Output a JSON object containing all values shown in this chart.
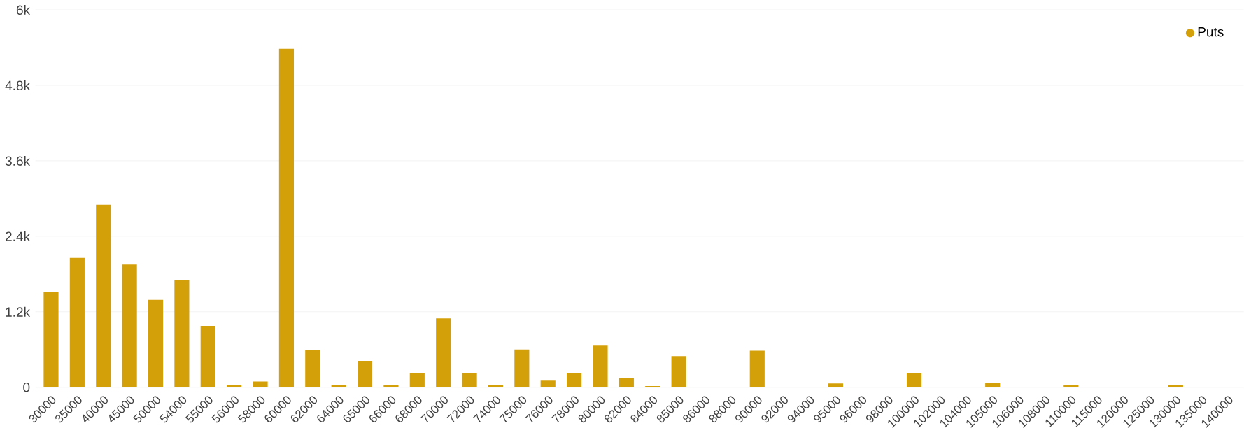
{
  "chart_data": {
    "type": "bar",
    "categories": [
      "30000",
      "35000",
      "40000",
      "45000",
      "50000",
      "54000",
      "55000",
      "56000",
      "58000",
      "60000",
      "62000",
      "64000",
      "65000",
      "66000",
      "68000",
      "70000",
      "72000",
      "74000",
      "75000",
      "76000",
      "78000",
      "80000",
      "82000",
      "84000",
      "85000",
      "86000",
      "88000",
      "90000",
      "92000",
      "94000",
      "95000",
      "96000",
      "98000",
      "100000",
      "102000",
      "104000",
      "105000",
      "106000",
      "108000",
      "110000",
      "115000",
      "120000",
      "125000",
      "130000",
      "135000",
      "140000"
    ],
    "series": [
      {
        "name": "Puts",
        "color": "#d4a00a",
        "values": [
          1515,
          2055,
          2900,
          1950,
          1390,
          1700,
          975,
          40,
          90,
          5380,
          585,
          40,
          420,
          40,
          225,
          1095,
          225,
          40,
          600,
          105,
          225,
          660,
          150,
          20,
          495,
          0,
          0,
          580,
          0,
          0,
          60,
          0,
          0,
          225,
          0,
          0,
          75,
          0,
          0,
          40,
          0,
          0,
          0,
          40,
          0,
          0
        ]
      }
    ],
    "ylim": [
      0,
      6000
    ],
    "yticks": [
      0,
      {
        "value": 1200,
        "label": "1.2k"
      },
      {
        "value": 2400,
        "label": "2.4k"
      },
      {
        "value": 3600,
        "label": "3.6k"
      },
      {
        "value": 4800,
        "label": "4.8k"
      },
      {
        "value": 6000,
        "label": "6k"
      }
    ],
    "grid": "y",
    "legend": "top right"
  }
}
